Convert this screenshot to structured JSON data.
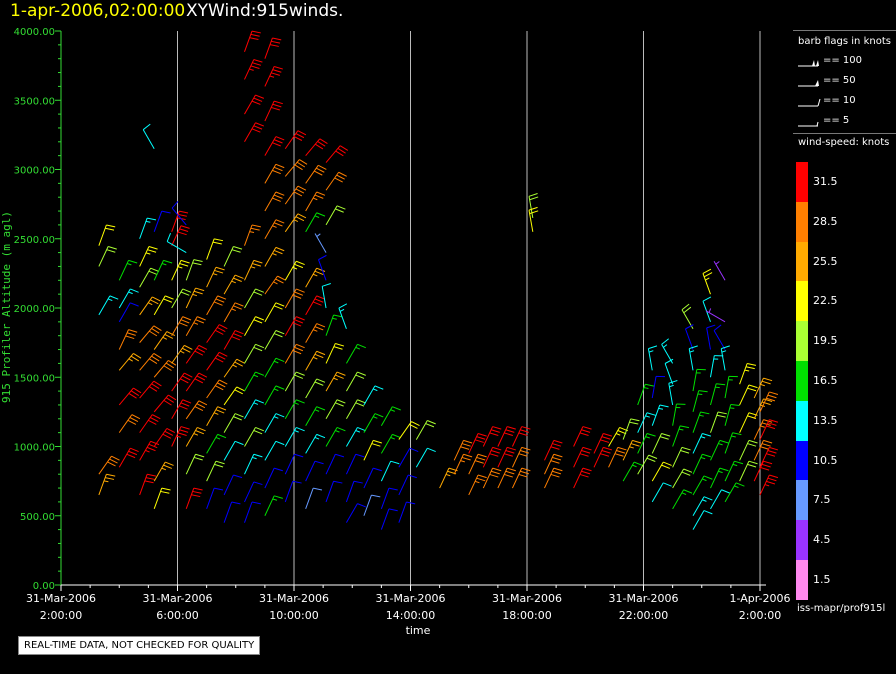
{
  "header": {
    "time": "1-apr-2006,02:00:00",
    "title": "XYWind:915winds."
  },
  "qc_note": "REAL-TIME DATA, NOT CHECKED FOR QUALITY",
  "source": "iss-mapr/prof915l",
  "legend": {
    "barb_title": "barb flags in knots",
    "barbs": [
      {
        "label": "== 100",
        "kind": "flag100"
      },
      {
        "label": "== 50",
        "kind": "flag50"
      },
      {
        "label": "== 10",
        "kind": "full"
      },
      {
        "label": "== 5",
        "kind": "half"
      }
    ],
    "speed_title": "wind-speed: knots",
    "speed_bins": [
      {
        "label": "31.5",
        "color": "#ff0000"
      },
      {
        "label": "28.5",
        "color": "#ff7f00"
      },
      {
        "label": "25.5",
        "color": "#ffaa00"
      },
      {
        "label": "22.5",
        "color": "#ffff00"
      },
      {
        "label": "19.5",
        "color": "#aaff33"
      },
      {
        "label": "16.5",
        "color": "#00e000"
      },
      {
        "label": "13.5",
        "color": "#00ffff"
      },
      {
        "label": "10.5",
        "color": "#0000ff"
      },
      {
        "label": "7.5",
        "color": "#6699ff"
      },
      {
        "label": "4.5",
        "color": "#9933ff"
      },
      {
        "label": "1.5",
        "color": "#ff88ee"
      }
    ]
  },
  "chart_data": {
    "type": "scatter",
    "subtype": "wind-barb time-height",
    "xlabel": "time",
    "ylabel": "915 Profiler Altitude (m agl)",
    "xlim": [
      "31-Mar-2006 2:00:00",
      "1-Apr-2006 2:00:00"
    ],
    "ylim": [
      0,
      4000
    ],
    "x_ticks": [
      {
        "date": "31-Mar-2006",
        "time": "2:00:00"
      },
      {
        "date": "31-Mar-2006",
        "time": "6:00:00"
      },
      {
        "date": "31-Mar-2006",
        "time": "10:00:00"
      },
      {
        "date": "31-Mar-2006",
        "time": "14:00:00"
      },
      {
        "date": "31-Mar-2006",
        "time": "18:00:00"
      },
      {
        "date": "31-Mar-2006",
        "time": "22:00:00"
      },
      {
        "date": "1-Apr-2006",
        "time": "2:00:00"
      }
    ],
    "y_ticks": [
      "0.00",
      "500.00",
      "1000.00",
      "1500.00",
      "2000.00",
      "2500.00",
      "3000.00",
      "3500.00",
      "4000.00"
    ],
    "y_tick_values": [
      0,
      500,
      1000,
      1500,
      2000,
      2500,
      3000,
      3500,
      4000
    ],
    "grid": "vertical",
    "legend": "right",
    "observations": [
      [
        1.3,
        2450,
        20,
        22
      ],
      [
        1.3,
        2300,
        25,
        20
      ],
      [
        1.3,
        1950,
        30,
        14
      ],
      [
        1.3,
        800,
        35,
        28
      ],
      [
        1.3,
        650,
        20,
        25
      ],
      [
        2.0,
        2200,
        25,
        16
      ],
      [
        2.0,
        2000,
        30,
        14
      ],
      [
        2.0,
        1900,
        30,
        10
      ],
      [
        2.0,
        1700,
        25,
        29
      ],
      [
        2.0,
        1550,
        40,
        26
      ],
      [
        2.0,
        1300,
        40,
        31
      ],
      [
        2.0,
        1100,
        35,
        29
      ],
      [
        2.0,
        850,
        30,
        32
      ],
      [
        2.7,
        2500,
        20,
        13
      ],
      [
        2.7,
        2300,
        25,
        23
      ],
      [
        2.7,
        2150,
        30,
        20
      ],
      [
        2.7,
        1950,
        35,
        26
      ],
      [
        2.7,
        1750,
        40,
        29
      ],
      [
        2.7,
        1550,
        40,
        28
      ],
      [
        2.7,
        1350,
        40,
        31
      ],
      [
        2.7,
        1100,
        35,
        31
      ],
      [
        2.7,
        900,
        30,
        33
      ],
      [
        2.7,
        650,
        20,
        30
      ],
      [
        3.2,
        3150,
        330,
        12
      ],
      [
        3.2,
        2550,
        20,
        9
      ],
      [
        3.2,
        2200,
        25,
        15
      ],
      [
        3.2,
        1950,
        30,
        22
      ],
      [
        3.2,
        1700,
        35,
        26
      ],
      [
        3.2,
        1500,
        40,
        29
      ],
      [
        3.2,
        1250,
        40,
        31
      ],
      [
        3.2,
        1000,
        35,
        30
      ],
      [
        3.2,
        750,
        30,
        25
      ],
      [
        3.2,
        550,
        20,
        22
      ],
      [
        3.8,
        2550,
        20,
        32
      ],
      [
        3.8,
        2450,
        25,
        31
      ],
      [
        3.8,
        2200,
        25,
        23
      ],
      [
        3.8,
        2000,
        30,
        20
      ],
      [
        3.8,
        1800,
        30,
        28
      ],
      [
        3.8,
        1600,
        35,
        26
      ],
      [
        3.8,
        1400,
        35,
        31
      ],
      [
        3.8,
        1200,
        30,
        32
      ],
      [
        3.8,
        1000,
        25,
        33
      ],
      [
        4.3,
        2600,
        320,
        11
      ],
      [
        4.3,
        2400,
        300,
        12
      ],
      [
        4.3,
        2200,
        20,
        18
      ],
      [
        4.3,
        2000,
        25,
        25
      ],
      [
        4.3,
        1800,
        30,
        27
      ],
      [
        4.3,
        1600,
        35,
        30
      ],
      [
        4.3,
        1400,
        35,
        31
      ],
      [
        4.3,
        1200,
        35,
        28
      ],
      [
        4.3,
        1000,
        30,
        24
      ],
      [
        4.3,
        800,
        25,
        19
      ],
      [
        4.3,
        550,
        20,
        31
      ],
      [
        5.0,
        2350,
        20,
        22
      ],
      [
        5.0,
        2150,
        25,
        26
      ],
      [
        5.0,
        1950,
        30,
        28
      ],
      [
        5.0,
        1750,
        35,
        30
      ],
      [
        5.0,
        1550,
        35,
        31
      ],
      [
        5.0,
        1350,
        35,
        29
      ],
      [
        5.0,
        1150,
        30,
        24
      ],
      [
        5.0,
        950,
        30,
        17
      ],
      [
        5.0,
        750,
        25,
        20
      ],
      [
        5.0,
        550,
        20,
        10
      ],
      [
        5.6,
        2300,
        25,
        18
      ],
      [
        5.6,
        2100,
        30,
        24
      ],
      [
        5.6,
        1900,
        30,
        27
      ],
      [
        5.6,
        1700,
        30,
        30
      ],
      [
        5.6,
        1500,
        35,
        26
      ],
      [
        5.6,
        1300,
        35,
        22
      ],
      [
        5.6,
        1100,
        30,
        19
      ],
      [
        5.6,
        900,
        30,
        12
      ],
      [
        5.6,
        650,
        25,
        11
      ],
      [
        5.6,
        450,
        20,
        9
      ],
      [
        6.3,
        3850,
        20,
        32
      ],
      [
        6.3,
        3650,
        25,
        33
      ],
      [
        6.3,
        3400,
        30,
        32
      ],
      [
        6.3,
        3200,
        30,
        31
      ],
      [
        6.3,
        2450,
        20,
        27
      ],
      [
        6.3,
        2200,
        25,
        24
      ],
      [
        6.3,
        2000,
        30,
        20
      ],
      [
        6.3,
        1800,
        30,
        22
      ],
      [
        6.3,
        1600,
        30,
        18
      ],
      [
        6.3,
        1400,
        30,
        16
      ],
      [
        6.3,
        1200,
        30,
        13
      ],
      [
        6.3,
        1000,
        30,
        18
      ],
      [
        6.3,
        800,
        25,
        14
      ],
      [
        6.3,
        600,
        25,
        11
      ],
      [
        6.3,
        450,
        20,
        9
      ],
      [
        7.0,
        3800,
        20,
        31
      ],
      [
        7.0,
        3600,
        25,
        33
      ],
      [
        7.0,
        3350,
        25,
        32
      ],
      [
        7.0,
        3100,
        30,
        30
      ],
      [
        7.0,
        2900,
        30,
        29
      ],
      [
        7.0,
        2700,
        30,
        28
      ],
      [
        7.0,
        2500,
        30,
        27
      ],
      [
        7.0,
        2300,
        30,
        26
      ],
      [
        7.0,
        2100,
        35,
        27
      ],
      [
        7.0,
        1900,
        30,
        21
      ],
      [
        7.0,
        1700,
        30,
        18
      ],
      [
        7.0,
        1500,
        30,
        15
      ],
      [
        7.0,
        1300,
        30,
        17
      ],
      [
        7.0,
        1100,
        30,
        13
      ],
      [
        7.0,
        900,
        30,
        12
      ],
      [
        7.0,
        700,
        25,
        11
      ],
      [
        7.0,
        500,
        25,
        17
      ],
      [
        7.7,
        3150,
        35,
        31
      ],
      [
        7.7,
        2950,
        40,
        28
      ],
      [
        7.7,
        2750,
        35,
        29
      ],
      [
        7.7,
        2550,
        35,
        26
      ],
      [
        7.7,
        2200,
        30,
        23
      ],
      [
        7.7,
        2000,
        30,
        28
      ],
      [
        7.7,
        1800,
        30,
        31
      ],
      [
        7.7,
        1600,
        30,
        29
      ],
      [
        7.7,
        1400,
        30,
        19
      ],
      [
        7.7,
        1200,
        30,
        15
      ],
      [
        7.7,
        1000,
        30,
        13
      ],
      [
        7.7,
        800,
        25,
        10
      ],
      [
        7.7,
        600,
        20,
        9
      ],
      [
        8.4,
        3100,
        40,
        31
      ],
      [
        8.4,
        2900,
        35,
        29
      ],
      [
        8.4,
        2700,
        30,
        27
      ],
      [
        8.4,
        2550,
        30,
        17
      ],
      [
        8.4,
        2150,
        30,
        26
      ],
      [
        8.4,
        1950,
        30,
        31
      ],
      [
        8.4,
        1750,
        30,
        27
      ],
      [
        8.4,
        1550,
        30,
        24
      ],
      [
        8.4,
        1350,
        30,
        20
      ],
      [
        8.4,
        1150,
        30,
        15
      ],
      [
        8.4,
        950,
        30,
        13
      ],
      [
        8.4,
        750,
        25,
        10
      ],
      [
        8.4,
        550,
        20,
        8
      ],
      [
        9.1,
        3050,
        40,
        30
      ],
      [
        9.1,
        2850,
        35,
        28
      ],
      [
        9.1,
        2600,
        30,
        19
      ],
      [
        9.1,
        2400,
        330,
        6
      ],
      [
        9.1,
        2200,
        340,
        10
      ],
      [
        9.1,
        2000,
        350,
        12
      ],
      [
        9.1,
        1800,
        20,
        17
      ],
      [
        9.1,
        1600,
        25,
        22
      ],
      [
        9.1,
        1400,
        30,
        24
      ],
      [
        9.1,
        1200,
        30,
        18
      ],
      [
        9.1,
        1000,
        30,
        15
      ],
      [
        9.1,
        800,
        25,
        11
      ],
      [
        9.1,
        600,
        20,
        9
      ],
      [
        9.8,
        1850,
        340,
        13
      ],
      [
        9.8,
        1600,
        30,
        15
      ],
      [
        9.8,
        1400,
        30,
        18
      ],
      [
        9.8,
        1200,
        30,
        20
      ],
      [
        9.8,
        1000,
        30,
        14
      ],
      [
        9.8,
        800,
        25,
        11
      ],
      [
        9.8,
        600,
        20,
        9
      ],
      [
        9.8,
        450,
        30,
        10
      ],
      [
        10.4,
        1300,
        30,
        14
      ],
      [
        10.4,
        1100,
        30,
        16
      ],
      [
        10.4,
        900,
        25,
        21
      ],
      [
        10.4,
        700,
        25,
        10
      ],
      [
        10.4,
        500,
        20,
        8
      ],
      [
        11.0,
        1150,
        30,
        15
      ],
      [
        11.0,
        950,
        30,
        17
      ],
      [
        11.0,
        750,
        25,
        12
      ],
      [
        11.0,
        550,
        20,
        10
      ],
      [
        11.0,
        400,
        20,
        9
      ],
      [
        11.6,
        1050,
        35,
        22
      ],
      [
        11.6,
        850,
        30,
        11
      ],
      [
        11.6,
        650,
        25,
        10
      ],
      [
        11.6,
        450,
        20,
        11
      ],
      [
        12.2,
        1050,
        30,
        18
      ],
      [
        12.2,
        850,
        30,
        12
      ],
      [
        13.0,
        700,
        25,
        24
      ],
      [
        13.5,
        900,
        25,
        28
      ],
      [
        13.5,
        800,
        25,
        27
      ],
      [
        14.0,
        950,
        25,
        31
      ],
      [
        14.0,
        800,
        25,
        29
      ],
      [
        14.0,
        650,
        25,
        27
      ],
      [
        14.5,
        1000,
        25,
        32
      ],
      [
        14.5,
        850,
        25,
        31
      ],
      [
        14.5,
        700,
        25,
        29
      ],
      [
        15.0,
        1000,
        25,
        31
      ],
      [
        15.0,
        850,
        25,
        30
      ],
      [
        15.0,
        700,
        25,
        28
      ],
      [
        15.5,
        1000,
        25,
        30
      ],
      [
        15.5,
        850,
        25,
        29
      ],
      [
        15.5,
        700,
        25,
        28
      ],
      [
        16.2,
        2650,
        350,
        20
      ],
      [
        16.2,
        2550,
        350,
        21
      ],
      [
        16.6,
        900,
        25,
        31
      ],
      [
        16.6,
        800,
        25,
        29
      ],
      [
        16.6,
        700,
        25,
        28
      ],
      [
        17.6,
        1000,
        25,
        31
      ],
      [
        17.6,
        850,
        25,
        31
      ],
      [
        17.6,
        700,
        25,
        30
      ],
      [
        18.3,
        950,
        25,
        32
      ],
      [
        18.3,
        850,
        25,
        30
      ],
      [
        18.8,
        1000,
        30,
        23
      ],
      [
        18.8,
        850,
        25,
        29
      ],
      [
        19.3,
        1050,
        20,
        19
      ],
      [
        19.3,
        900,
        25,
        24
      ],
      [
        19.3,
        750,
        30,
        17
      ],
      [
        19.8,
        1300,
        20,
        15
      ],
      [
        19.8,
        1100,
        25,
        13
      ],
      [
        19.8,
        950,
        25,
        16
      ],
      [
        19.8,
        800,
        30,
        18
      ],
      [
        20.3,
        1550,
        350,
        13
      ],
      [
        20.3,
        1350,
        10,
        11
      ],
      [
        20.3,
        1150,
        20,
        14
      ],
      [
        20.3,
        950,
        25,
        18
      ],
      [
        20.3,
        750,
        30,
        21
      ],
      [
        20.3,
        600,
        30,
        12
      ],
      [
        21.0,
        1600,
        330,
        14
      ],
      [
        21.0,
        1450,
        340,
        12
      ],
      [
        21.0,
        1300,
        350,
        13
      ],
      [
        21.0,
        1150,
        10,
        15
      ],
      [
        21.0,
        1000,
        20,
        17
      ],
      [
        21.0,
        850,
        25,
        18
      ],
      [
        21.0,
        700,
        30,
        20
      ],
      [
        21.0,
        550,
        30,
        17
      ],
      [
        21.7,
        1850,
        330,
        19
      ],
      [
        21.7,
        1700,
        340,
        10
      ],
      [
        21.7,
        1550,
        350,
        13
      ],
      [
        21.7,
        1400,
        10,
        15
      ],
      [
        21.7,
        1250,
        15,
        17
      ],
      [
        21.7,
        1100,
        20,
        16
      ],
      [
        21.7,
        950,
        25,
        14
      ],
      [
        21.7,
        800,
        25,
        15
      ],
      [
        21.7,
        650,
        30,
        17
      ],
      [
        21.7,
        500,
        30,
        13
      ],
      [
        21.7,
        400,
        30,
        12
      ],
      [
        22.3,
        2100,
        340,
        23
      ],
      [
        22.3,
        1900,
        340,
        12
      ],
      [
        22.3,
        1700,
        350,
        11
      ],
      [
        22.3,
        1500,
        10,
        14
      ],
      [
        22.3,
        1300,
        15,
        16
      ],
      [
        22.3,
        1100,
        20,
        18
      ],
      [
        22.3,
        900,
        25,
        17
      ],
      [
        22.3,
        700,
        25,
        15
      ],
      [
        22.3,
        550,
        30,
        12
      ],
      [
        22.8,
        2200,
        330,
        5
      ],
      [
        22.8,
        1900,
        300,
        4
      ],
      [
        22.8,
        1700,
        330,
        9
      ],
      [
        22.8,
        1550,
        350,
        13
      ],
      [
        22.8,
        1350,
        10,
        15
      ],
      [
        22.8,
        1150,
        15,
        16
      ],
      [
        22.8,
        950,
        20,
        17
      ],
      [
        22.8,
        750,
        25,
        16
      ],
      [
        22.8,
        600,
        30,
        15
      ],
      [
        23.3,
        1450,
        20,
        23
      ],
      [
        23.3,
        1300,
        25,
        21
      ],
      [
        23.3,
        1100,
        25,
        22
      ],
      [
        23.3,
        900,
        25,
        20
      ],
      [
        23.3,
        750,
        25,
        19
      ],
      [
        23.8,
        1350,
        25,
        26
      ],
      [
        23.8,
        1200,
        25,
        24
      ],
      [
        23.8,
        1050,
        25,
        27
      ],
      [
        23.8,
        900,
        25,
        29
      ],
      [
        23.8,
        750,
        25,
        31
      ],
      [
        24.0,
        1250,
        25,
        28
      ],
      [
        24.0,
        1050,
        25,
        30
      ],
      [
        24.0,
        850,
        25,
        32
      ],
      [
        24.0,
        650,
        25,
        33
      ]
    ]
  }
}
